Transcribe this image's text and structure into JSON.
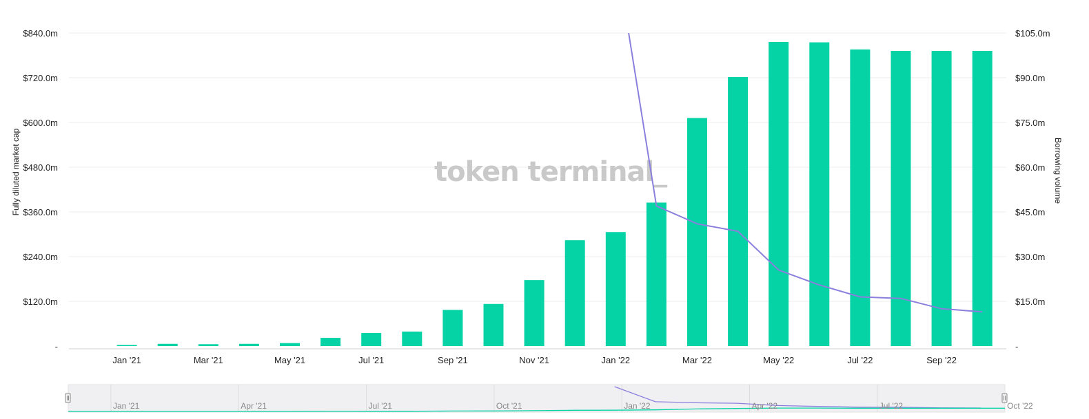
{
  "chart_data": {
    "type": "bar",
    "watermark": "token terminal_",
    "colors": {
      "bars": "#05d3a6",
      "line": "#8a7fdd",
      "grid": "#ececec"
    },
    "categories": [
      "Dec '20",
      "Jan '21",
      "Feb '21",
      "Mar '21",
      "Apr '21",
      "May '21",
      "Jun '21",
      "Jul '21",
      "Aug '21",
      "Sep '21",
      "Oct '21",
      "Nov '21",
      "Dec '21",
      "Jan '22",
      "Feb '22",
      "Mar '22",
      "Apr '22",
      "May '22",
      "Jun '22",
      "Jul '22",
      "Aug '22",
      "Sep '22",
      "Oct '22"
    ],
    "series": [
      {
        "axis": "left",
        "kind": "bar",
        "values": [
          null,
          3,
          6,
          5,
          6,
          8,
          22,
          35,
          39,
          97,
          113,
          177,
          284,
          306,
          385,
          612,
          722,
          816,
          815,
          796,
          792,
          792,
          792
        ]
      },
      {
        "axis": "right",
        "kind": "line",
        "values": [
          null,
          null,
          null,
          null,
          null,
          null,
          null,
          null,
          null,
          null,
          null,
          null,
          null,
          132,
          47,
          41,
          38.5,
          25.5,
          20.5,
          16.5,
          16,
          12.5,
          11.5
        ]
      }
    ],
    "xlabel": "",
    "ylabel_left": "Fully diluted market cap",
    "ylabel_right": "Borrowing volume",
    "ylim_left": [
      0,
      840
    ],
    "ylim_right": [
      0,
      105
    ],
    "yticks_left": [
      "-",
      "$120.0m",
      "$240.0m",
      "$360.0m",
      "$480.0m",
      "$600.0m",
      "$720.0m",
      "$840.0m"
    ],
    "yticks_right": [
      "-",
      "$15.0m",
      "$30.0m",
      "$45.0m",
      "$60.0m",
      "$75.0m",
      "$90.0m",
      "$105.0m"
    ],
    "xticks": [
      {
        "label": "Jan '21",
        "index": 1
      },
      {
        "label": "Mar '21",
        "index": 3
      },
      {
        "label": "May '21",
        "index": 5
      },
      {
        "label": "Jul '21",
        "index": 7
      },
      {
        "label": "Sep '21",
        "index": 9
      },
      {
        "label": "Nov '21",
        "index": 11
      },
      {
        "label": "Jan '22",
        "index": 13
      },
      {
        "label": "Mar '22",
        "index": 15
      },
      {
        "label": "May '22",
        "index": 17
      },
      {
        "label": "Jul '22",
        "index": 19
      },
      {
        "label": "Sep '22",
        "index": 21
      }
    ],
    "grid": true,
    "navigator": {
      "ticks": [
        "Jan '21",
        "Apr '21",
        "Jul '21",
        "Oct '21",
        "Jan '22",
        "Apr '22",
        "Jul '22",
        "Oct '22"
      ]
    }
  }
}
